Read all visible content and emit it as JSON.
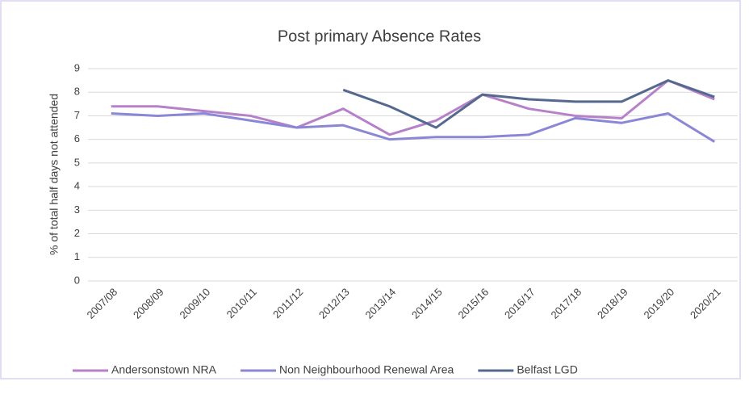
{
  "chart_data": {
    "type": "line",
    "title": "Post primary Absence Rates",
    "y_label": "% of total half days not attended",
    "categories": [
      "2007/08",
      "2008/09",
      "2009/10",
      "2010/11",
      "2011/12",
      "2012/13",
      "2013/14",
      "2014/15",
      "2015/16",
      "2016/17",
      "2017/18",
      "2018/19",
      "2019/20",
      "2020/21"
    ],
    "series": [
      {
        "name": "Andersonstown NRA",
        "color": "#b681c8",
        "values": [
          7.4,
          7.4,
          7.2,
          7.0,
          6.5,
          7.3,
          6.2,
          6.8,
          7.9,
          7.3,
          7.0,
          6.9,
          8.5,
          7.7
        ]
      },
      {
        "name": "Non Neighbourhood Renewal Area",
        "color": "#8a87d6",
        "values": [
          7.1,
          7.0,
          7.1,
          6.8,
          6.5,
          6.6,
          6.0,
          6.1,
          6.1,
          6.2,
          6.9,
          6.7,
          7.1,
          5.9
        ]
      },
      {
        "name": "Belfast LGD",
        "color": "#55698f",
        "values": [
          null,
          null,
          null,
          null,
          null,
          8.1,
          7.4,
          6.5,
          7.9,
          7.7,
          7.6,
          7.6,
          8.5,
          7.8
        ]
      }
    ],
    "ylim": [
      0,
      9
    ],
    "yticks": [
      0,
      1,
      2,
      3,
      4,
      5,
      6,
      7,
      8,
      9
    ],
    "grid": true,
    "legend": "bottom"
  }
}
